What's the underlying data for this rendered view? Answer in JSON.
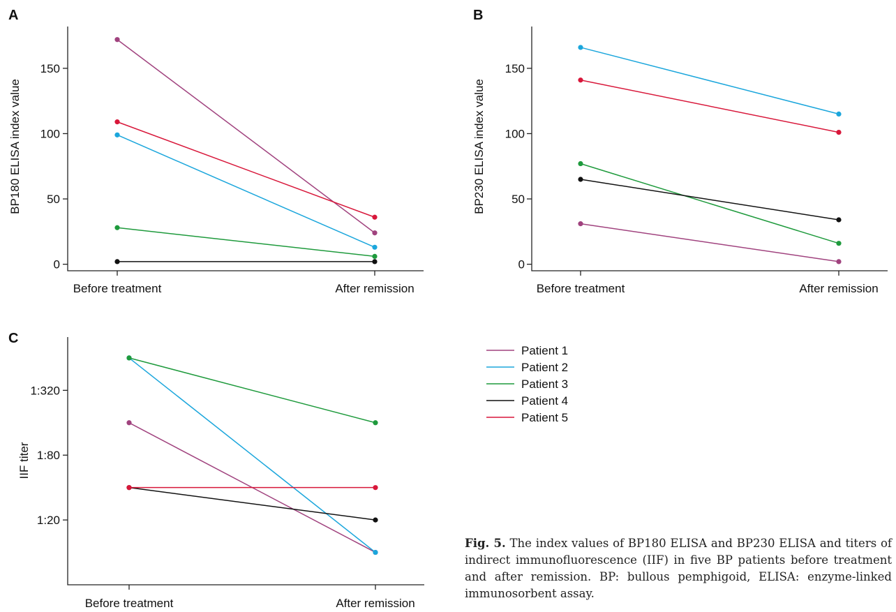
{
  "colors": {
    "axis": "#222222",
    "text": "#111111"
  },
  "legend": {
    "entries": [
      {
        "name": "Patient 1",
        "color": "#a0427e"
      },
      {
        "name": "Patient 2",
        "color": "#1ba6dc"
      },
      {
        "name": "Patient 3",
        "color": "#1e9a3c"
      },
      {
        "name": "Patient 4",
        "color": "#111111"
      },
      {
        "name": "Patient 5",
        "color": "#d8173a"
      }
    ]
  },
  "caption": {
    "label": "Fig. 5.",
    "text": "The index values of BP180 ELISA and BP230 ELISA and titers of indirect immunofluorescence (IIF) in five BP patients before treatment and after remission. BP: bullous pemphigoid, ELISA: enzyme-linked immunosorbent assay."
  },
  "chart_data": [
    {
      "panel": "A",
      "type": "line",
      "categories": [
        "Before treatment",
        "After remission"
      ],
      "ylabel": "BP180 ELISA index value",
      "yticks": [
        0,
        50,
        100,
        150
      ],
      "ylim": [
        -5,
        182
      ],
      "series": [
        {
          "name": "Patient 1",
          "values": [
            172,
            24
          ]
        },
        {
          "name": "Patient 2",
          "values": [
            99,
            13
          ]
        },
        {
          "name": "Patient 3",
          "values": [
            28,
            6
          ]
        },
        {
          "name": "Patient 4",
          "values": [
            2,
            2
          ]
        },
        {
          "name": "Patient 5",
          "values": [
            109,
            36
          ]
        }
      ]
    },
    {
      "panel": "B",
      "type": "line",
      "categories": [
        "Before treatment",
        "After remission"
      ],
      "ylabel": "BP230 ELISA index value",
      "yticks": [
        0,
        50,
        100,
        150
      ],
      "ylim": [
        -5,
        182
      ],
      "series": [
        {
          "name": "Patient 1",
          "values": [
            31,
            2
          ]
        },
        {
          "name": "Patient 2",
          "values": [
            166,
            115
          ]
        },
        {
          "name": "Patient 3",
          "values": [
            77,
            16
          ]
        },
        {
          "name": "Patient 4",
          "values": [
            65,
            34
          ]
        },
        {
          "name": "Patient 5",
          "values": [
            141,
            101
          ]
        }
      ]
    },
    {
      "panel": "C",
      "type": "line",
      "categories": [
        "Before treatment",
        "After remission"
      ],
      "ylabel": "IIF titer",
      "yscale": "log2",
      "ytick_labels": [
        "1:20",
        "1:80",
        "1:320"
      ],
      "ytick_values": [
        20,
        80,
        320
      ],
      "ylim": [
        5,
        1000
      ],
      "series": [
        {
          "name": "Patient 1",
          "values": [
            160,
            10
          ]
        },
        {
          "name": "Patient 2",
          "values": [
            640,
            10
          ]
        },
        {
          "name": "Patient 3",
          "values": [
            640,
            160
          ]
        },
        {
          "name": "Patient 4",
          "values": [
            40,
            20
          ]
        },
        {
          "name": "Patient 5",
          "values": [
            40,
            40
          ]
        }
      ]
    }
  ]
}
